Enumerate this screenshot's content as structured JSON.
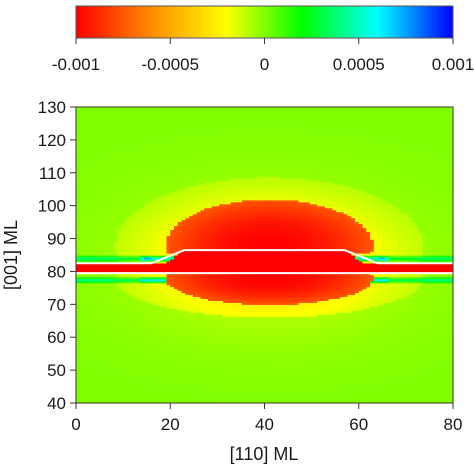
{
  "chart_data": {
    "type": "heatmap",
    "title": "",
    "xlabel": "[110] ML",
    "ylabel": "[001] ML",
    "xlim": [
      0,
      80
    ],
    "ylim": [
      40,
      130
    ],
    "x_ticks": [
      "0",
      "20",
      "40",
      "60",
      "80"
    ],
    "y_ticks": [
      "40",
      "50",
      "60",
      "70",
      "80",
      "90",
      "100",
      "110",
      "120",
      "130"
    ],
    "grid": false,
    "colorbar": {
      "placement": "top",
      "range": [
        -0.001,
        0.001
      ],
      "tick_labels": [
        "-0.001",
        "-0.0005",
        "0",
        "0.0005",
        "0.001"
      ],
      "colors": [
        "#ff0000",
        "#ff8c00",
        "#ffff00",
        "#00ff00",
        "#00ffff",
        "#0000ff"
      ]
    },
    "field": {
      "background_value": 0.0,
      "wetting_layer": {
        "y_range": [
          79.5,
          82.5
        ],
        "value": -0.001
      },
      "island": {
        "base_y": 79.5,
        "top_y": 86.5,
        "base_x_range": [
          16,
          64
        ],
        "top_x_range": [
          23,
          57
        ],
        "value": -0.001
      },
      "compressive_lobe_above": {
        "center_x": 41,
        "center_y": 88,
        "radius_x": 22,
        "radius_y": 14,
        "value": -0.001
      },
      "compressive_lobe_below": {
        "center_x": 41,
        "center_y": 78,
        "radius_x": 22,
        "radius_y": 8,
        "value": -0.001
      },
      "tensile_stripes": {
        "y_values": [
          84,
          77.5
        ],
        "value": 0.0008
      },
      "interface_lines": {
        "y_values": [
          79.5,
          82.5
        ],
        "color": "#ffffff"
      }
    }
  }
}
